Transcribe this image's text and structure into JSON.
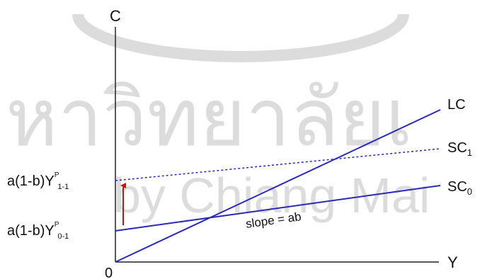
{
  "watermark": {
    "line1": "หาวิทยาลัยเ",
    "line2": "by Chiang Mai"
  },
  "axes": {
    "y_label": "C",
    "x_label": "Y",
    "origin_label": "0"
  },
  "lines": {
    "lc": "LC",
    "sc1": "SC",
    "sc1_sub": "1",
    "sc0": "SC",
    "sc0_sub": "0"
  },
  "intercepts": {
    "upper_prefix": "a(1-b)Y",
    "upper_sup": "P",
    "upper_sub": "1-1",
    "lower_prefix": "a(1-b)Y",
    "lower_sup": "P",
    "lower_sub": "0-1"
  },
  "annotation": {
    "slope": "slope = ab"
  },
  "colors": {
    "line": "#2a2ab8",
    "arrow": "#cc1111",
    "axis": "#222222",
    "watermark": "#dcdcdc"
  }
}
